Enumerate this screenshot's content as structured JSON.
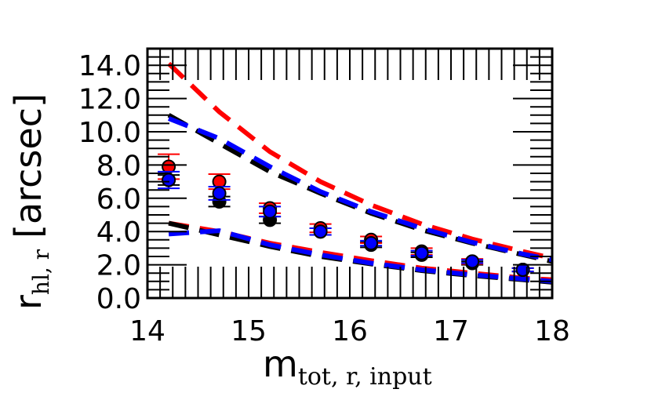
{
  "chart_data": {
    "type": "scatter",
    "xlabel": {
      "main": "m",
      "sub": "tot, r, input"
    },
    "ylabel": {
      "main": "r",
      "sub": "hl, r",
      "unit": "[arcsec]"
    },
    "xlim": [
      14,
      18
    ],
    "ylim": [
      0,
      15
    ],
    "xticks": [
      14,
      15,
      16,
      17,
      18
    ],
    "xtick_labels": [
      "14",
      "15",
      "16",
      "17",
      "18"
    ],
    "yticks": [
      0,
      2,
      4,
      6,
      8,
      10,
      12,
      14
    ],
    "ytick_labels": [
      "0.0",
      "2.0",
      "4.0",
      "6.0",
      "8.0",
      "10.0",
      "12.0",
      "14.0"
    ],
    "points": [
      {
        "name": "black",
        "color": "#000000",
        "x": [
          14.21,
          14.71,
          15.21,
          15.71,
          16.21,
          16.71,
          17.21,
          17.71
        ],
        "y": [
          7.1,
          5.8,
          4.7,
          4.0,
          3.2,
          2.6,
          2.1,
          1.7
        ],
        "yerr": [
          0.3,
          0.3,
          0.2,
          0.2,
          0.15,
          0.15,
          0.1,
          0.1
        ]
      },
      {
        "name": "red",
        "color": "#ff0000",
        "x": [
          14.21,
          14.71,
          15.21,
          15.71,
          16.21,
          16.71,
          17.21,
          17.71
        ],
        "y": [
          7.9,
          7.0,
          5.4,
          4.2,
          3.5,
          2.8,
          2.2,
          1.7
        ],
        "yerr": [
          0.75,
          0.45,
          0.3,
          0.25,
          0.2,
          0.2,
          0.15,
          0.1
        ]
      },
      {
        "name": "blue",
        "color": "#0000ff",
        "x": [
          14.21,
          14.71,
          15.21,
          15.71,
          16.21,
          16.71,
          17.21,
          17.71
        ],
        "y": [
          7.1,
          6.3,
          5.2,
          4.0,
          3.3,
          2.7,
          2.2,
          1.7
        ],
        "yerr": [
          0.5,
          0.4,
          0.3,
          0.2,
          0.15,
          0.15,
          0.1,
          0.1
        ]
      }
    ],
    "dashed_lines": [
      {
        "name": "red-upper",
        "color": "#ff0000",
        "x": [
          14.21,
          14.71,
          15.21,
          15.71,
          16.21,
          16.71,
          17.21,
          17.71,
          18.0
        ],
        "y": [
          14.1,
          11.2,
          8.8,
          7.0,
          5.6,
          4.45,
          3.55,
          2.8,
          2.4
        ]
      },
      {
        "name": "black-upper",
        "color": "#000000",
        "x": [
          14.21,
          14.71,
          15.21,
          15.71,
          16.21,
          16.71,
          17.21,
          17.71,
          18.0
        ],
        "y": [
          11.0,
          9.3,
          7.6,
          6.3,
          5.1,
          4.1,
          3.3,
          2.6,
          2.2
        ]
      },
      {
        "name": "blue-upper",
        "color": "#0000ff",
        "x": [
          14.21,
          14.71,
          15.21,
          15.71,
          16.21,
          16.71,
          17.21,
          17.71,
          18.0
        ],
        "y": [
          10.8,
          9.6,
          7.9,
          6.4,
          5.2,
          4.2,
          3.35,
          2.65,
          2.3
        ]
      },
      {
        "name": "red-lower",
        "color": "#ff0000",
        "x": [
          14.21,
          14.71,
          15.21,
          15.71,
          16.21,
          16.71,
          17.21,
          17.71,
          18.0
        ],
        "y": [
          4.5,
          4.0,
          3.3,
          2.75,
          2.25,
          1.8,
          1.5,
          1.2,
          1.1
        ]
      },
      {
        "name": "black-lower",
        "color": "#000000",
        "x": [
          14.21,
          14.71,
          15.21,
          15.71,
          16.21,
          16.71,
          17.21,
          17.71,
          18.0
        ],
        "y": [
          4.5,
          3.8,
          3.1,
          2.5,
          2.05,
          1.65,
          1.35,
          1.1,
          0.95
        ]
      },
      {
        "name": "blue-lower",
        "color": "#0000ff",
        "x": [
          14.21,
          14.71,
          15.21,
          15.71,
          16.21,
          16.71,
          17.21,
          17.71,
          18.0
        ],
        "y": [
          3.85,
          4.05,
          3.2,
          2.6,
          2.1,
          1.7,
          1.4,
          1.15,
          1.0
        ]
      }
    ]
  }
}
